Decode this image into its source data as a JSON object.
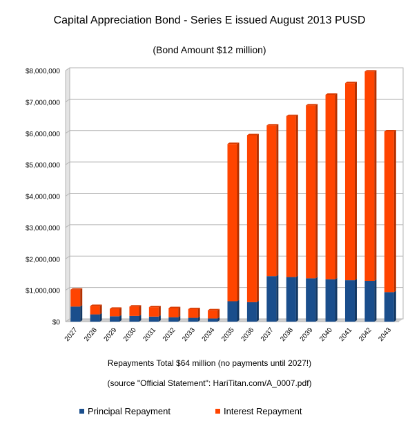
{
  "chart_data": {
    "type": "bar",
    "stacked": true,
    "title": "Capital Appreciation Bond - Series E issued August 2013 PUSD",
    "subtitle": "(Bond Amount $12 million)",
    "xlabel": "Repayments Total $64 million (no payments until 2027!)",
    "source_note": "(source \"Official Statement\": HariTitan.com/A_0007.pdf)",
    "ylabel": "",
    "ylim": [
      0,
      8000000
    ],
    "yticks": [
      0,
      1000000,
      2000000,
      3000000,
      4000000,
      5000000,
      6000000,
      7000000,
      8000000
    ],
    "ytick_labels": [
      "$0",
      "$1,000,000",
      "$2,000,000",
      "$3,000,000",
      "$4,000,000",
      "$5,000,000",
      "$6,000,000",
      "$7,000,000",
      "$8,000,000"
    ],
    "grid": true,
    "legend_position": "bottom",
    "categories": [
      "2027",
      "2028",
      "2029",
      "2030",
      "2031",
      "2032",
      "2033",
      "2034",
      "2035",
      "2036",
      "2037",
      "2038",
      "2039",
      "2040",
      "2041",
      "2042",
      "2043"
    ],
    "series": [
      {
        "name": "Principal Repayment",
        "color": "#1a4e8c",
        "values": [
          480000,
          230000,
          170000,
          180000,
          160000,
          140000,
          120000,
          100000,
          650000,
          620000,
          1450000,
          1420000,
          1380000,
          1350000,
          1320000,
          1300000,
          940000
        ]
      },
      {
        "name": "Interest Repayment",
        "color": "#ff4400",
        "values": [
          540000,
          270000,
          240000,
          300000,
          300000,
          290000,
          280000,
          260000,
          5010000,
          5320000,
          4800000,
          5130000,
          5510000,
          5880000,
          6280000,
          6670000,
          5120000
        ]
      }
    ]
  }
}
